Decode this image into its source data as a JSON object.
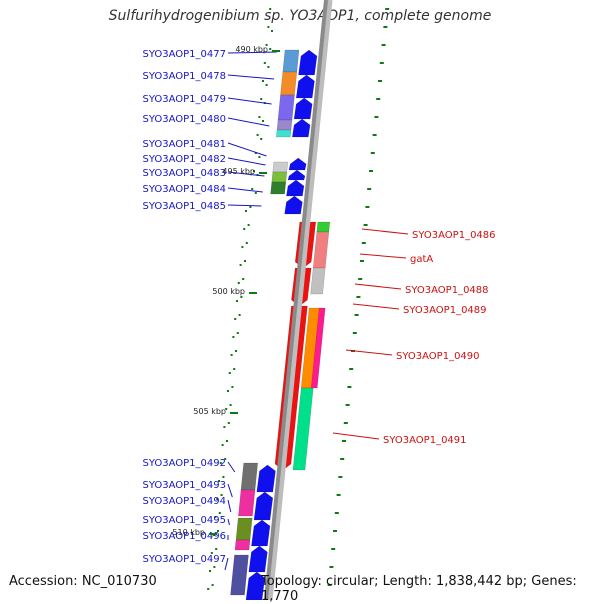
{
  "title": "Sulfurihydrogenibium sp. YO3AOP1, complete genome",
  "footer": {
    "accession": "Accession: NC_010730",
    "summary": "Topology: circular; Length: 1,838,442 bp; Genes: 1,770"
  },
  "colors": {
    "left_labels": "#1515c8",
    "right_labels": "#cc1111",
    "backbone": "#8a8a8a",
    "ticks": "#0f7a0f",
    "forward_genes": "#1010ee",
    "reverse_genes": "#ee1111"
  },
  "kbp_markers": [
    "490 kbp",
    "495 kbp",
    "500 kbp",
    "505 kbp",
    "510 kbp"
  ],
  "left_genes": [
    "SYO3AOP1_0477",
    "SYO3AOP1_0478",
    "SYO3AOP1_0479",
    "SYO3AOP1_0480",
    "SYO3AOP1_0481",
    "SYO3AOP1_0482",
    "SYO3AOP1_0483",
    "SYO3AOP1_0484",
    "SYO3AOP1_0485",
    "SYO3AOP1_0492",
    "SYO3AOP1_0493",
    "SYO3AOP1_0494",
    "SYO3AOP1_0495",
    "SYO3AOP1_0496",
    "SYO3AOP1_0497"
  ],
  "right_genes": [
    "SYO3AOP1_0486",
    "gatA",
    "SYO3AOP1_0488",
    "SYO3AOP1_0489",
    "SYO3AOP1_0490",
    "SYO3AOP1_0491"
  ]
}
